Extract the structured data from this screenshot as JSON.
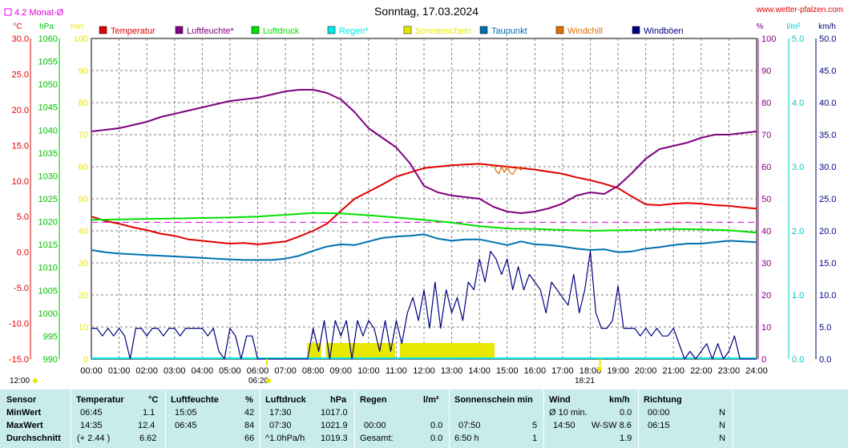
{
  "header": {
    "title": "Sonntag, 17.03.2024",
    "site": "www.wetter-pfalzen.com",
    "monthly_avg_label": "4.2 Monat-Ø"
  },
  "axis_units": {
    "temp": "°C",
    "pressure": "hPa",
    "minutes": "min",
    "humidity": "%",
    "rain": "l/m²",
    "wind": "km/h"
  },
  "legend": [
    {
      "label": "Temperatur",
      "color": "#e00000"
    },
    {
      "label": "Luftfeuchte*",
      "color": "#800080"
    },
    {
      "label": "Luftdruck",
      "color": "#00e000"
    },
    {
      "label": "Regen*",
      "color": "#00e8e8"
    },
    {
      "label": "Sonnenschein",
      "color": "#e8e800"
    },
    {
      "label": "Taupunkt",
      "color": "#0070b0"
    },
    {
      "label": "Windchill",
      "color": "#e07000"
    },
    {
      "label": "Windböen",
      "color": "#000080"
    }
  ],
  "chart_data": {
    "type": "line",
    "title": "Sonntag, 17.03.2024",
    "x_ticks": [
      "00:00",
      "01:00",
      "02:00",
      "03:00",
      "04:00",
      "05:00",
      "06:00",
      "07:00",
      "08:00",
      "09:00",
      "10:00",
      "11:00",
      "12:00",
      "13:00",
      "14:00",
      "15:00",
      "16:00",
      "17:00",
      "18:00",
      "19:00",
      "20:00",
      "21:00",
      "22:00",
      "23:00",
      "24:00"
    ],
    "xlim": [
      0,
      24
    ],
    "axes": {
      "temp_c": {
        "ticks": [
          "30.0",
          "25.0",
          "20.0",
          "15.0",
          "10.0",
          "5.0",
          "0.0",
          "-5.0",
          "-10.0",
          "-15.0"
        ],
        "range": [
          -15,
          30
        ]
      },
      "pressure_hpa": {
        "ticks": [
          "1060",
          "1055",
          "1050",
          "1045",
          "1040",
          "1035",
          "1030",
          "1025",
          "1020",
          "1015",
          "1010",
          "1005",
          "1000",
          "995",
          "990"
        ],
        "range": [
          990,
          1060
        ]
      },
      "sunshine_min": {
        "ticks": [
          "100",
          "90",
          "80",
          "70",
          "60",
          "50",
          "40",
          "30",
          "20",
          "10",
          "0"
        ],
        "range": [
          0,
          100
        ]
      },
      "humidity_pct": {
        "ticks": [
          "100",
          "90",
          "80",
          "70",
          "60",
          "50",
          "40",
          "30",
          "20",
          "10",
          "0"
        ],
        "range": [
          0,
          100
        ]
      },
      "rain_lm2": {
        "ticks": [
          "5.0",
          "4.0",
          "3.0",
          "2.0",
          "1.0",
          "0.0"
        ],
        "range": [
          0,
          5
        ]
      },
      "wind_kmh": {
        "ticks": [
          "50.0",
          "45.0",
          "40.0",
          "35.0",
          "30.0",
          "25.0",
          "20.0",
          "15.0",
          "10.0",
          "5.0",
          "0.0"
        ],
        "range": [
          0,
          50
        ]
      }
    },
    "monthly_avg_temp": 4.2,
    "series": [
      {
        "name": "Temperatur",
        "axis": "temp_c",
        "color": "#e00000",
        "x": [
          0,
          0.5,
          1,
          1.5,
          2,
          2.5,
          3,
          3.5,
          4,
          4.5,
          5,
          5.5,
          6,
          6.5,
          7,
          7.5,
          8,
          8.5,
          9,
          9.5,
          10,
          10.5,
          11,
          11.5,
          12,
          12.5,
          13,
          13.5,
          14,
          14.5,
          15,
          15.5,
          16,
          16.5,
          17,
          17.5,
          18,
          18.5,
          19,
          19.5,
          20,
          20.5,
          21,
          21.5,
          22,
          22.5,
          23,
          23.5,
          24
        ],
        "y": [
          5.0,
          4.4,
          4.0,
          3.5,
          3.1,
          2.6,
          2.3,
          1.8,
          1.6,
          1.4,
          1.2,
          1.3,
          1.1,
          1.3,
          1.5,
          2.2,
          3.0,
          4.0,
          5.8,
          7.5,
          8.5,
          9.5,
          10.6,
          11.2,
          11.8,
          12.0,
          12.2,
          12.3,
          12.4,
          12.2,
          12.0,
          11.8,
          11.6,
          11.3,
          11.0,
          10.5,
          10.1,
          9.6,
          9.0,
          7.8,
          6.7,
          6.6,
          6.8,
          6.9,
          6.8,
          6.6,
          6.5,
          6.3,
          6.1
        ]
      },
      {
        "name": "Luftfeuchte*",
        "axis": "humidity_pct",
        "color": "#800080",
        "x": [
          0,
          0.5,
          1,
          1.5,
          2,
          2.5,
          3,
          3.5,
          4,
          4.5,
          5,
          5.5,
          6,
          6.5,
          7,
          7.5,
          8,
          8.5,
          9,
          9.5,
          10,
          10.5,
          11,
          11.5,
          12,
          12.5,
          13,
          13.5,
          14,
          14.5,
          15,
          15.5,
          16,
          16.5,
          17,
          17.5,
          18,
          18.5,
          19,
          19.5,
          20,
          20.5,
          21,
          21.5,
          22,
          22.5,
          23,
          23.5,
          24
        ],
        "y": [
          71,
          71.5,
          72,
          73,
          74,
          75.5,
          76.5,
          77.5,
          78.5,
          79.5,
          80.5,
          81,
          81.5,
          82.5,
          83.5,
          84,
          84,
          83,
          81,
          77,
          72,
          69,
          66,
          61,
          54,
          52,
          51,
          50.5,
          50,
          47.5,
          46,
          45.5,
          46,
          47,
          48.5,
          51,
          52,
          51.5,
          54,
          58,
          62.5,
          65.5,
          66.5,
          67.5,
          69,
          70,
          70,
          70.5,
          71
        ]
      },
      {
        "name": "Luftdruck",
        "axis": "pressure_hpa",
        "color": "#00e000",
        "x": [
          0,
          1,
          2,
          3,
          4,
          5,
          6,
          7,
          8,
          9,
          10,
          11,
          12,
          13,
          14,
          15,
          16,
          17,
          18,
          19,
          20,
          21,
          22,
          23,
          24
        ],
        "y": [
          1020.4,
          1020.5,
          1020.6,
          1020.7,
          1020.8,
          1020.9,
          1021.1,
          1021.5,
          1021.9,
          1021.8,
          1021.4,
          1020.9,
          1020.4,
          1019.8,
          1019.0,
          1018.5,
          1018.4,
          1018.2,
          1018.0,
          1018.1,
          1018.2,
          1018.4,
          1018.3,
          1018.1,
          1017.6
        ]
      },
      {
        "name": "Taupunkt",
        "axis": "temp_c",
        "color": "#0070b0",
        "x": [
          0,
          0.5,
          1,
          1.5,
          2,
          2.5,
          3,
          3.5,
          4,
          4.5,
          5,
          5.5,
          6,
          6.5,
          7,
          7.5,
          8,
          8.5,
          9,
          9.5,
          10,
          10.5,
          11,
          11.5,
          12,
          12.5,
          13,
          13.5,
          14,
          14.5,
          15,
          15.5,
          16,
          16.5,
          17,
          17.5,
          18,
          18.5,
          19,
          19.5,
          20,
          20.5,
          21,
          21.5,
          22,
          22.5,
          23,
          23.5,
          24
        ],
        "y": [
          0.3,
          0.0,
          -0.2,
          -0.3,
          -0.4,
          -0.5,
          -0.6,
          -0.7,
          -0.8,
          -0.9,
          -1.0,
          -1.1,
          -1.1,
          -1.1,
          -0.9,
          -0.5,
          0.2,
          0.8,
          1.1,
          1.0,
          1.5,
          2.0,
          2.2,
          2.3,
          2.5,
          1.9,
          1.6,
          1.8,
          1.8,
          1.4,
          1.0,
          1.5,
          1.1,
          1.0,
          0.8,
          0.5,
          0.3,
          0.4,
          0.0,
          0.1,
          0.5,
          0.7,
          1.0,
          1.2,
          1.2,
          1.4,
          1.6,
          1.5,
          1.4
        ]
      },
      {
        "name": "Windchill",
        "axis": "temp_c",
        "color": "#e07000",
        "x": [
          14.5,
          14.6,
          14.7,
          14.8,
          14.9,
          15,
          15.1,
          15.2,
          15.3,
          15.4,
          15.5,
          15.6
        ],
        "y": [
          12.3,
          11.4,
          11.0,
          12.0,
          11.2,
          12.1,
          11.2,
          10.9,
          11.6,
          12.0,
          11.5,
          12.0
        ]
      },
      {
        "name": "Windböen",
        "axis": "wind_kmh",
        "color": "#000080",
        "x": [
          0,
          0.2,
          0.4,
          0.6,
          0.8,
          1,
          1.2,
          1.4,
          1.6,
          1.8,
          2,
          2.2,
          2.4,
          2.6,
          2.8,
          3,
          3.2,
          3.4,
          3.6,
          3.8,
          4,
          4.2,
          4.4,
          4.6,
          4.8,
          5,
          5.2,
          5.4,
          5.6,
          5.8,
          6,
          6.2,
          6.4,
          6.6,
          6.8,
          7,
          7.2,
          7.4,
          7.6,
          7.8,
          8,
          8.2,
          8.4,
          8.6,
          8.8,
          9,
          9.2,
          9.4,
          9.6,
          9.8,
          10,
          10.2,
          10.4,
          10.6,
          10.8,
          11,
          11.2,
          11.4,
          11.6,
          11.8,
          12,
          12.2,
          12.4,
          12.6,
          12.8,
          13,
          13.2,
          13.4,
          13.6,
          13.8,
          14,
          14.2,
          14.4,
          14.6,
          14.8,
          15,
          15.2,
          15.4,
          15.6,
          15.8,
          16,
          16.2,
          16.4,
          16.6,
          16.8,
          17,
          17.2,
          17.4,
          17.6,
          17.8,
          18,
          18.2,
          18.4,
          18.6,
          18.8,
          19,
          19.2,
          19.4,
          19.6,
          19.8,
          20,
          20.2,
          20.4,
          20.6,
          20.8,
          21,
          21.2,
          21.4,
          21.6,
          21.8,
          22,
          22.2,
          22.4,
          22.6,
          22.8,
          23,
          23.2,
          23.4,
          23.6,
          23.8,
          24
        ],
        "y": [
          4.8,
          4.8,
          3.6,
          4.8,
          3.6,
          4.8,
          3.6,
          0,
          4.8,
          4.8,
          3.6,
          4.8,
          4.8,
          3.6,
          4.8,
          4.8,
          3.6,
          4.8,
          4.8,
          4.8,
          4.8,
          3.6,
          4.8,
          1.2,
          0,
          4.8,
          3.6,
          0,
          3.6,
          3.6,
          0,
          0,
          0,
          0,
          0,
          0,
          0,
          0,
          0,
          0,
          4.8,
          1.2,
          6,
          0,
          6,
          3.6,
          6,
          0,
          6,
          3.6,
          6,
          4.8,
          1.2,
          6,
          1.2,
          6,
          2.4,
          7.2,
          9.6,
          6,
          10.8,
          4.8,
          12,
          4.8,
          10.8,
          7.2,
          9.6,
          6,
          12,
          10.8,
          15.6,
          12,
          16.8,
          15.6,
          13.2,
          15.6,
          10.8,
          14.4,
          10.8,
          13.2,
          12,
          10.8,
          7.2,
          12,
          10.8,
          9.6,
          8.4,
          13.2,
          7.2,
          10.8,
          16.8,
          7.2,
          4.8,
          4.8,
          6,
          11.4,
          4.8,
          4.8,
          4.8,
          3.6,
          4.8,
          3.6,
          4.8,
          3.6,
          3.6,
          4.8,
          2.4,
          0,
          1.2,
          0,
          1.2,
          2.4,
          0,
          2.4,
          0,
          1.2,
          3.6,
          0,
          0,
          0,
          0
        ]
      }
    ],
    "sunshine_bars": {
      "start": "07:50",
      "end": "14:35",
      "value_min": 5,
      "color": "#e8e800"
    },
    "sunrise": {
      "time": "06:20",
      "label": "06:20"
    },
    "sunset": {
      "time": "18:21",
      "label": "18:21"
    },
    "daylength_label": "12:00"
  },
  "stats": {
    "columns": [
      {
        "header": "Sensor",
        "unit": "",
        "rows": [
          "MinWert",
          "MaxWert",
          "Durchschnitt"
        ]
      },
      {
        "header": "Temperatur",
        "unit": "°C",
        "rows": [
          [
            "06:45",
            "1.1"
          ],
          [
            "14:35",
            "12.4"
          ],
          [
            "(+ 2.44 )",
            "6.62"
          ]
        ]
      },
      {
        "header": "Luftfeuchte",
        "unit": "%",
        "rows": [
          [
            "15:05",
            "42"
          ],
          [
            "06:45",
            "84"
          ],
          [
            "",
            "66"
          ]
        ]
      },
      {
        "header": "Luftdruck",
        "unit": "hPa",
        "rows": [
          [
            "17:30",
            "1017.0"
          ],
          [
            "07:30",
            "1021.9"
          ],
          [
            "^1.0hPa/h",
            "1019.3"
          ]
        ]
      },
      {
        "header": "Regen",
        "unit": "l/m²",
        "rows": [
          [
            "",
            ""
          ],
          [
            "00:00",
            "0.0"
          ],
          [
            "Gesamt:",
            "0.0"
          ]
        ]
      },
      {
        "header": "Sonnenschein min",
        "unit": "",
        "rows": [
          [
            "",
            ""
          ],
          [
            "07:50",
            "5"
          ],
          [
            "6:50 h",
            "1"
          ]
        ]
      },
      {
        "header": "Wind",
        "unit": "km/h",
        "rows": [
          [
            "Ø 10 min.",
            "0.0"
          ],
          [
            "14:50",
            "W-SW 8.6"
          ],
          [
            "",
            "1.9"
          ]
        ]
      },
      {
        "header": "Richtung",
        "unit": "",
        "rows": [
          [
            "00:00",
            "N"
          ],
          [
            "06:15",
            "N"
          ],
          [
            "",
            "N"
          ]
        ]
      }
    ]
  }
}
